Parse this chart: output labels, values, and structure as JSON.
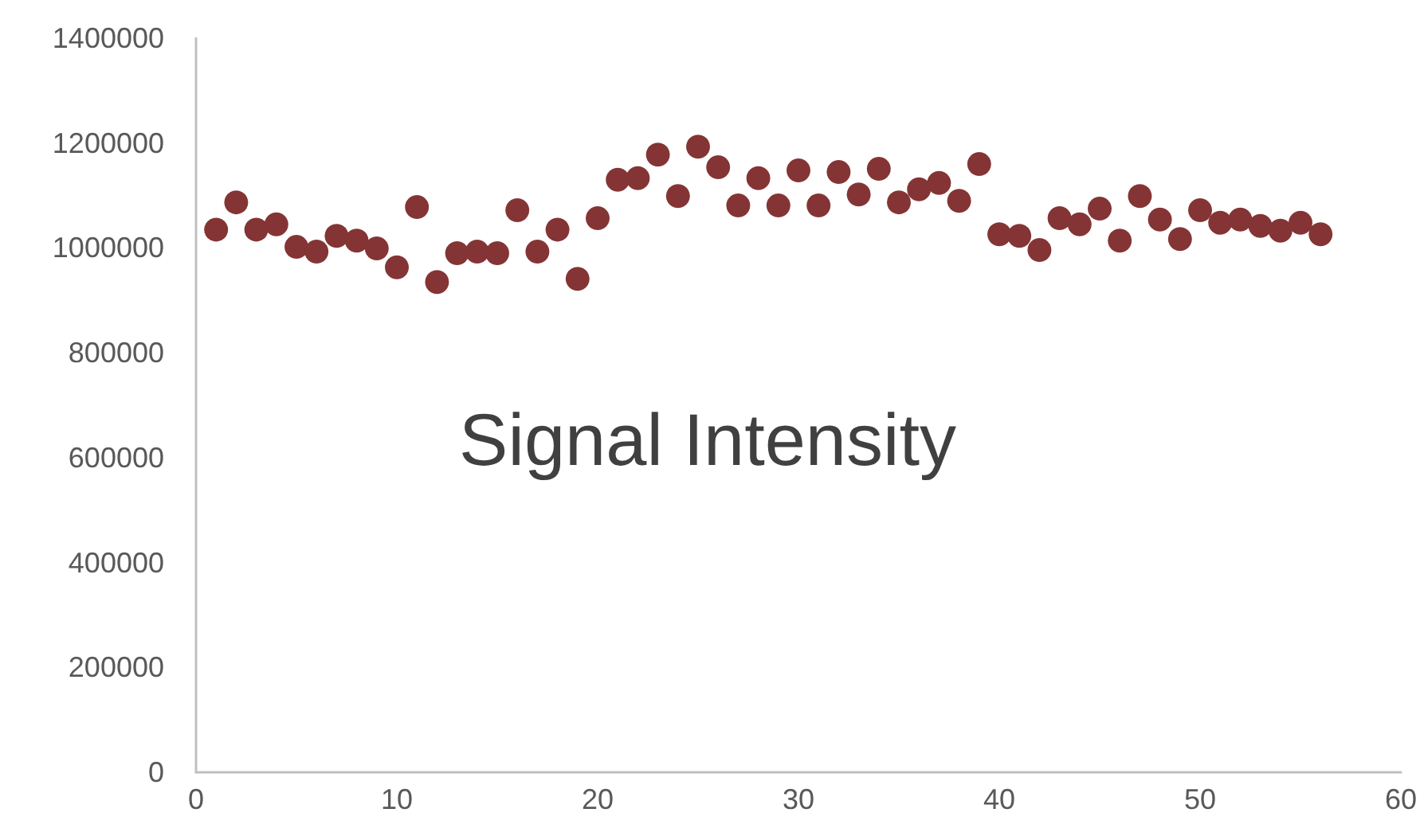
{
  "chart_data": {
    "type": "scatter",
    "title": "Signal Intensity",
    "x": [
      1,
      2,
      3,
      4,
      5,
      6,
      7,
      8,
      9,
      10,
      11,
      12,
      13,
      14,
      15,
      16,
      17,
      18,
      19,
      20,
      21,
      22,
      23,
      24,
      25,
      26,
      27,
      28,
      29,
      30,
      31,
      32,
      33,
      34,
      35,
      36,
      37,
      38,
      39,
      40,
      41,
      42,
      43,
      44,
      45,
      46,
      47,
      48,
      49,
      50,
      51,
      52,
      53,
      54,
      55,
      56
    ],
    "series": [
      {
        "color": "#843434",
        "values": [
          1035000,
          1087000,
          1035000,
          1045000,
          1002000,
          993000,
          1023000,
          1014000,
          999000,
          963000,
          1078000,
          935000,
          990000,
          993000,
          990000,
          1072000,
          993000,
          1035000,
          941000,
          1057000,
          1130000,
          1133000,
          1178000,
          1099000,
          1193000,
          1154000,
          1081000,
          1133000,
          1081000,
          1148000,
          1081000,
          1145000,
          1102000,
          1151000,
          1087000,
          1112000,
          1124000,
          1090000,
          1160000,
          1026000,
          1023000,
          996000,
          1057000,
          1045000,
          1075000,
          1014000,
          1099000,
          1054000,
          1017000,
          1072000,
          1048000,
          1054000,
          1042000,
          1033000,
          1048000,
          1026000
        ]
      }
    ],
    "xlim": [
      0,
      60
    ],
    "xticks": [
      0,
      10,
      20,
      30,
      40,
      50,
      60
    ],
    "ylim": [
      0,
      1400000
    ],
    "yticks": [
      0,
      200000,
      400000,
      600000,
      800000,
      1000000,
      1200000,
      1400000
    ],
    "grid": false,
    "marker": "circle"
  }
}
